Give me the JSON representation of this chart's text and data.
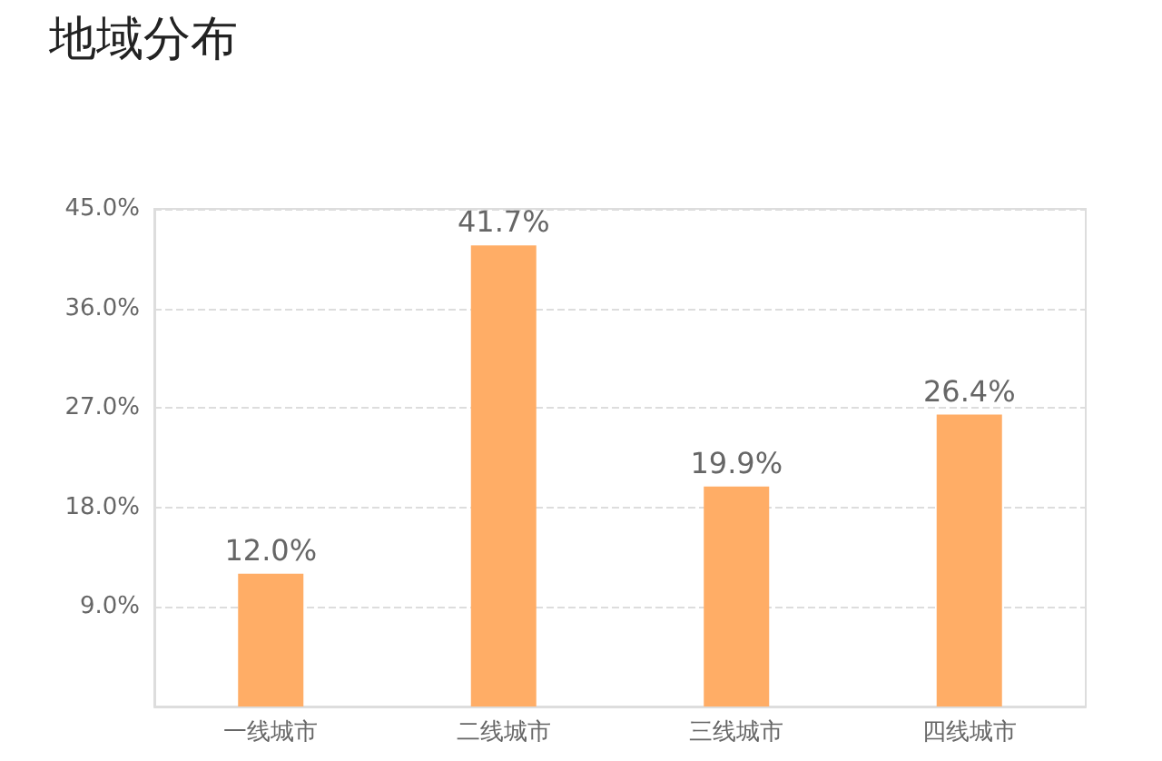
{
  "chart_data": {
    "type": "bar",
    "title": "地域分布",
    "categories": [
      "一线城市",
      "二线城市",
      "三线城市",
      "四线城市"
    ],
    "values": [
      12.0,
      41.7,
      19.9,
      26.4
    ],
    "value_labels": [
      "12.0%",
      "41.7%",
      "19.9%",
      "26.4%"
    ],
    "color": "#ffad66",
    "ylim": [
      0,
      45
    ],
    "yticks": [
      {
        "value": 0,
        "label": null
      },
      {
        "value": 9,
        "label": "9.0%"
      },
      {
        "value": 18,
        "label": "18.0%"
      },
      {
        "value": 27,
        "label": "27.0%"
      },
      {
        "value": 36,
        "label": "36.0%"
      },
      {
        "value": 45,
        "label": "45.0%"
      }
    ],
    "grid": "y"
  }
}
